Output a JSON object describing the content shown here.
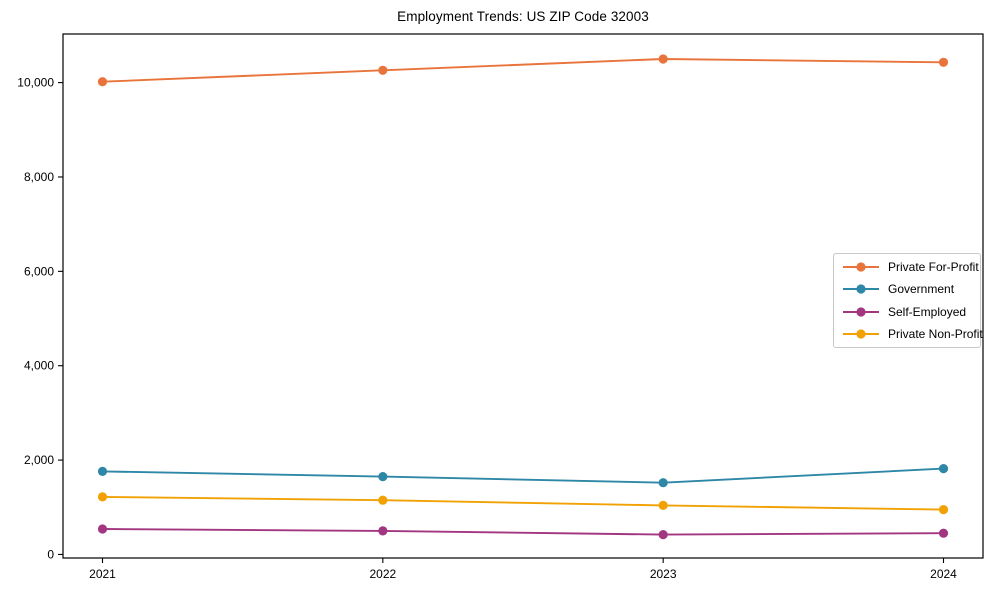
{
  "page": {
    "background": "#ffffff"
  },
  "chart_data": {
    "type": "line",
    "title": "Employment Trends: US ZIP Code 32003",
    "categories": [
      "2021",
      "2022",
      "2023",
      "2024"
    ],
    "series": [
      {
        "name": "Private For-Profit",
        "color": "#E8743B",
        "values": [
          10020,
          10260,
          10500,
          10430
        ]
      },
      {
        "name": "Government",
        "color": "#2E87A6",
        "values": [
          1760,
          1650,
          1520,
          1820
        ]
      },
      {
        "name": "Self-Employed",
        "color": "#A23680",
        "values": [
          540,
          500,
          420,
          450
        ]
      },
      {
        "name": "Private Non-Profit",
        "color": "#F2A104",
        "values": [
          1220,
          1150,
          1040,
          950
        ]
      }
    ],
    "xlabel": "",
    "ylabel": "",
    "ylim": [
      -75,
      11030
    ],
    "yticks": [
      0,
      2000,
      4000,
      6000,
      8000,
      10000
    ],
    "ytick_labels": [
      "0",
      "2,000",
      "4,000",
      "6,000",
      "8,000",
      "10,000"
    ],
    "grid": false,
    "legend_position": "center right",
    "marker": "circle",
    "axis_color": "#000000",
    "text_color": "#000000"
  }
}
